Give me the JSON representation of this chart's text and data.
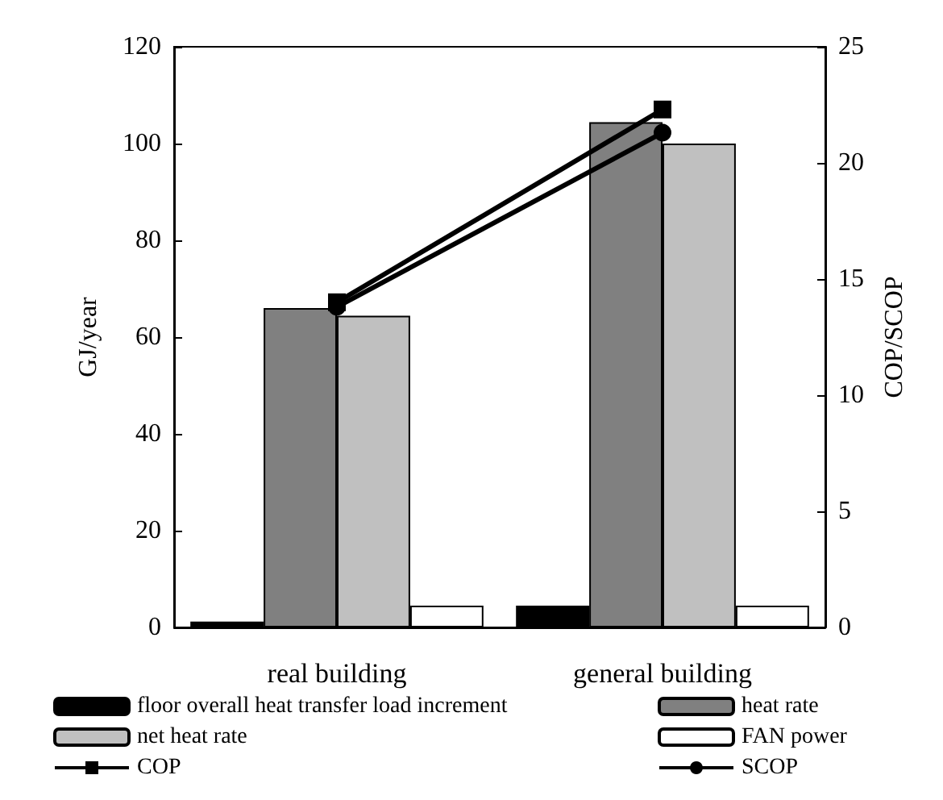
{
  "chart_data": {
    "type": "bar",
    "ylabel": "GJ/year",
    "y2label": "COP/SCOP",
    "categories": [
      "real building",
      "general building"
    ],
    "ylim": [
      0,
      120
    ],
    "yticks": [
      0,
      20,
      40,
      60,
      80,
      100,
      120
    ],
    "y2lim": [
      0,
      25
    ],
    "y2ticks": [
      0,
      5,
      10,
      15,
      20,
      25
    ],
    "grid": false,
    "legend": "bottom",
    "series": [
      {
        "name": "floor overall heat transfer load increment",
        "color": "#000000",
        "values": [
          1.2,
          4.5
        ]
      },
      {
        "name": "heat rate",
        "color": "#808080",
        "values": [
          66,
          104.4
        ]
      },
      {
        "name": "net heat rate",
        "color": "#c0c0c0",
        "values": [
          64.4,
          100
        ]
      },
      {
        "name": "FAN power",
        "color": "#ffffff",
        "values": [
          4.5,
          4.5
        ]
      },
      {
        "name": "COP",
        "type": "line",
        "axis": "y2",
        "color": "#000000",
        "marker": "square",
        "values": [
          14.0,
          22.3
        ]
      },
      {
        "name": "SCOP",
        "type": "line",
        "axis": "y2",
        "color": "#000000",
        "marker": "circle",
        "values": [
          13.8,
          21.3
        ]
      }
    ]
  }
}
